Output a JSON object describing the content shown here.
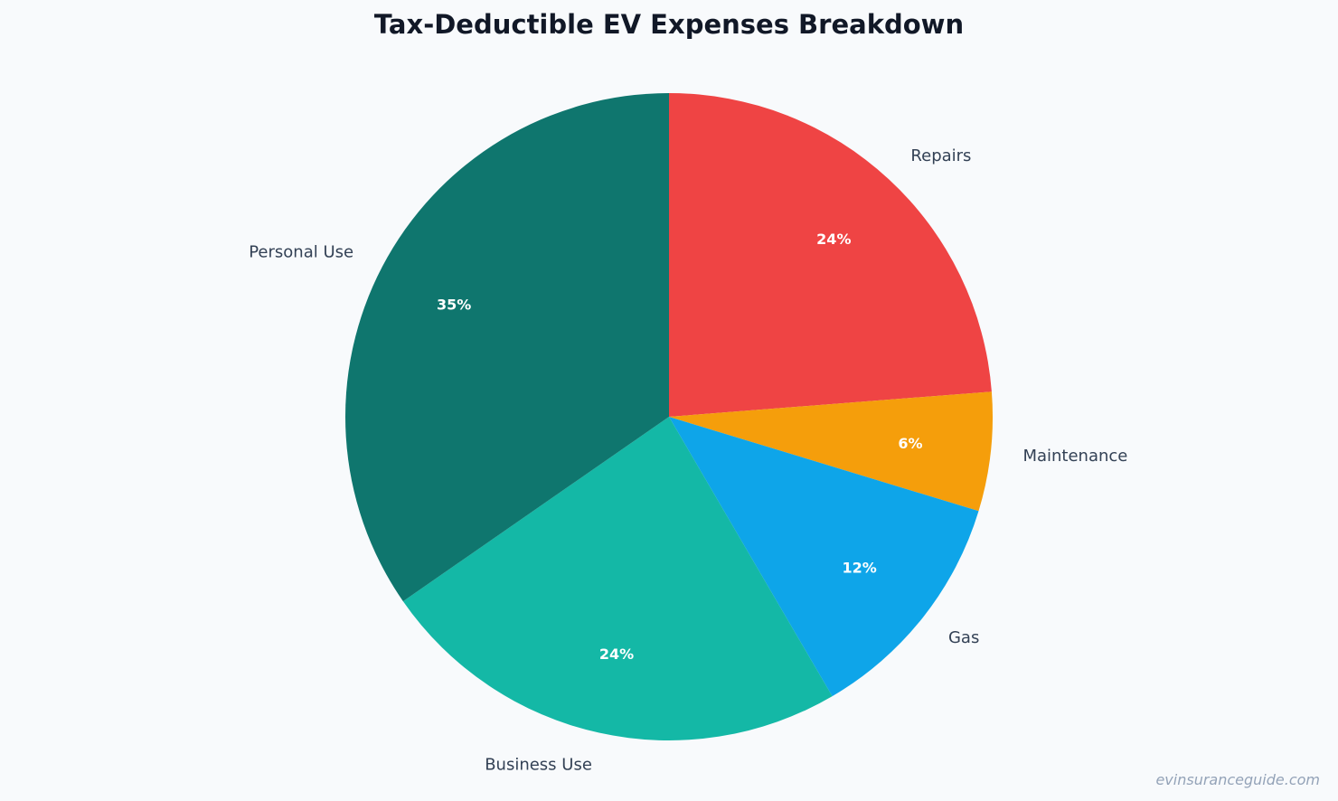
{
  "chart_data": {
    "type": "pie",
    "title": "Tax-Deductible EV Expenses Breakdown",
    "categories": [
      "Repairs",
      "Maintenance",
      "Gas",
      "Business Use",
      "Personal Use"
    ],
    "values": [
      24,
      6,
      12,
      24,
      35
    ],
    "percent_labels": [
      "24%",
      "6%",
      "12%",
      "24%",
      "35%"
    ],
    "colors": [
      "#ef4444",
      "#f59e0b",
      "#0ea5e9",
      "#14b8a6",
      "#0f766e"
    ],
    "start_angle": "12 o'clock",
    "direction": "clockwise",
    "legend": "none"
  },
  "watermark": "evinsuranceguide.com"
}
